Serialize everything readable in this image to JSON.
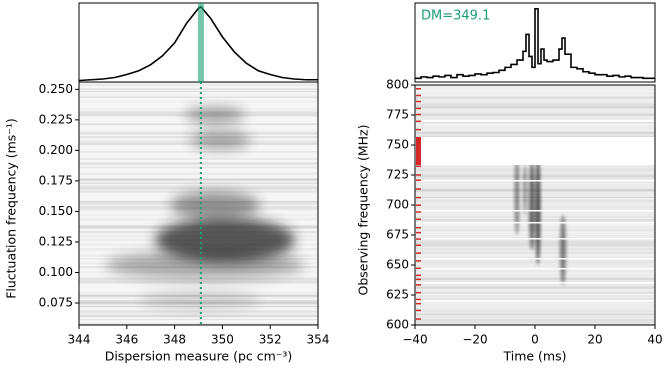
{
  "chart_data": [
    {
      "type": "heatmap",
      "xlabel": "Dispersion measure (pc cm⁻³)",
      "ylabel": "Fluctuation frequency (ms⁻¹)",
      "xlim": [
        344,
        354
      ],
      "ylim": [
        0.057,
        0.256
      ],
      "xticks": [
        344,
        346,
        348,
        350,
        352,
        354
      ],
      "yticks": [
        {
          "value": 0.075,
          "label": "0.075"
        },
        {
          "value": 0.1,
          "label": "0.100"
        },
        {
          "value": 0.125,
          "label": "0.125"
        },
        {
          "value": 0.15,
          "label": "0.150"
        },
        {
          "value": 0.175,
          "label": "0.175"
        },
        {
          "value": 0.2,
          "label": "0.200"
        },
        {
          "value": 0.225,
          "label": "0.225"
        },
        {
          "value": 0.25,
          "label": "0.250"
        }
      ],
      "dm": 349.1,
      "marker_color": "#1a9e77",
      "profile": {
        "x": [
          344,
          344.5,
          345,
          345.5,
          346,
          346.5,
          347,
          347.5,
          348,
          348.5,
          349,
          349.1,
          349.5,
          350,
          350.5,
          351,
          351.5,
          352,
          352.5,
          353,
          353.5,
          354
        ],
        "values": [
          0.02,
          0.03,
          0.04,
          0.06,
          0.1,
          0.15,
          0.23,
          0.35,
          0.52,
          0.78,
          0.98,
          1.0,
          0.85,
          0.6,
          0.4,
          0.25,
          0.15,
          0.1,
          0.06,
          0.04,
          0.03,
          0.03
        ],
        "ylim": [
          0,
          1.05
        ]
      }
    },
    {
      "type": "heatmap",
      "xlabel": "Time (ms)",
      "ylabel": "Observing frequency (MHz)",
      "xlim": [
        -40,
        40
      ],
      "ylim": [
        600,
        800
      ],
      "xticks": [
        {
          "value": -40,
          "label": "−40"
        },
        {
          "value": -20,
          "label": "−20"
        },
        0,
        20,
        40
      ],
      "yticks": [
        600,
        625,
        650,
        675,
        700,
        725,
        750,
        775,
        800
      ],
      "annotation": "DM=349.1",
      "annotation_color": "#1a9e77",
      "profile": {
        "x": [
          -40,
          -38,
          -36,
          -34,
          -32,
          -30,
          -28,
          -26,
          -24,
          -22,
          -20,
          -18,
          -16,
          -14,
          -12,
          -10,
          -8,
          -6,
          -4,
          -3,
          -2,
          -1,
          0,
          1,
          2,
          3,
          4,
          6,
          8,
          9,
          10,
          12,
          14,
          16,
          18,
          20,
          22,
          24,
          26,
          28,
          30,
          32,
          34,
          36,
          38
        ],
        "values": [
          0.05,
          0.07,
          0.06,
          0.08,
          0.07,
          0.09,
          0.06,
          0.1,
          0.08,
          0.09,
          0.11,
          0.1,
          0.12,
          0.13,
          0.16,
          0.2,
          0.24,
          0.3,
          0.42,
          0.65,
          0.35,
          0.2,
          1.0,
          0.25,
          0.45,
          0.3,
          0.28,
          0.3,
          0.45,
          0.6,
          0.38,
          0.2,
          0.18,
          0.14,
          0.12,
          0.1,
          0.1,
          0.08,
          0.09,
          0.07,
          0.08,
          0.06,
          0.06,
          0.05,
          0.05
        ],
        "ylim": [
          0,
          1.08
        ]
      }
    }
  ]
}
